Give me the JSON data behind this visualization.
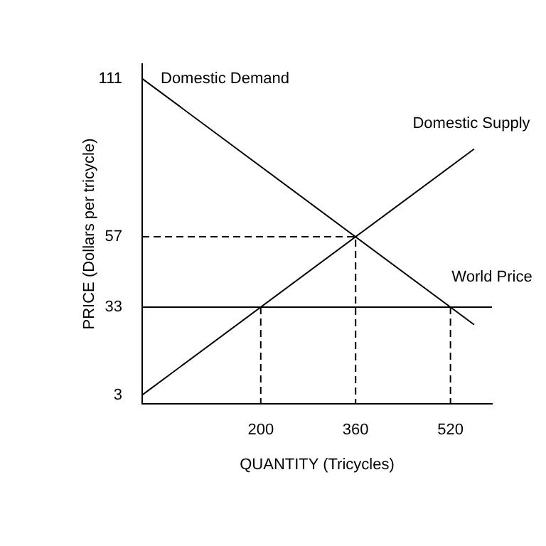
{
  "chart_data": {
    "type": "line",
    "xlabel": "QUANTITY (Tricycles)",
    "ylabel": "PRICE (Dollars per tricycle)",
    "xlim": [
      0,
      590
    ],
    "ylim": [
      0,
      116
    ],
    "xticks": [
      200,
      360,
      520
    ],
    "yticks": [
      3,
      33,
      57,
      111
    ],
    "grid": false,
    "marker": "none",
    "series": [
      {
        "name": "Domestic Demand",
        "color": "#000000",
        "x": [
          0,
          560
        ],
        "values": [
          111,
          27
        ]
      },
      {
        "name": "Domestic Supply",
        "color": "#000000",
        "x": [
          0,
          560
        ],
        "values": [
          3,
          87
        ]
      },
      {
        "color": "#000000",
        "x": [
          0,
          360,
          360
        ],
        "values": [
          57,
          57,
          0
        ],
        "line_style": "dashed"
      },
      {
        "color": "#000000",
        "x": [
          200,
          200
        ],
        "values": [
          33,
          0
        ],
        "line_style": "dashed"
      },
      {
        "color": "#000000",
        "x": [
          520,
          520
        ],
        "values": [
          33,
          0
        ],
        "line_style": "dashed"
      }
    ],
    "ref_lines": [
      {
        "axis": "y",
        "value": 33,
        "label": "World Price",
        "color": "#000000"
      }
    ]
  }
}
